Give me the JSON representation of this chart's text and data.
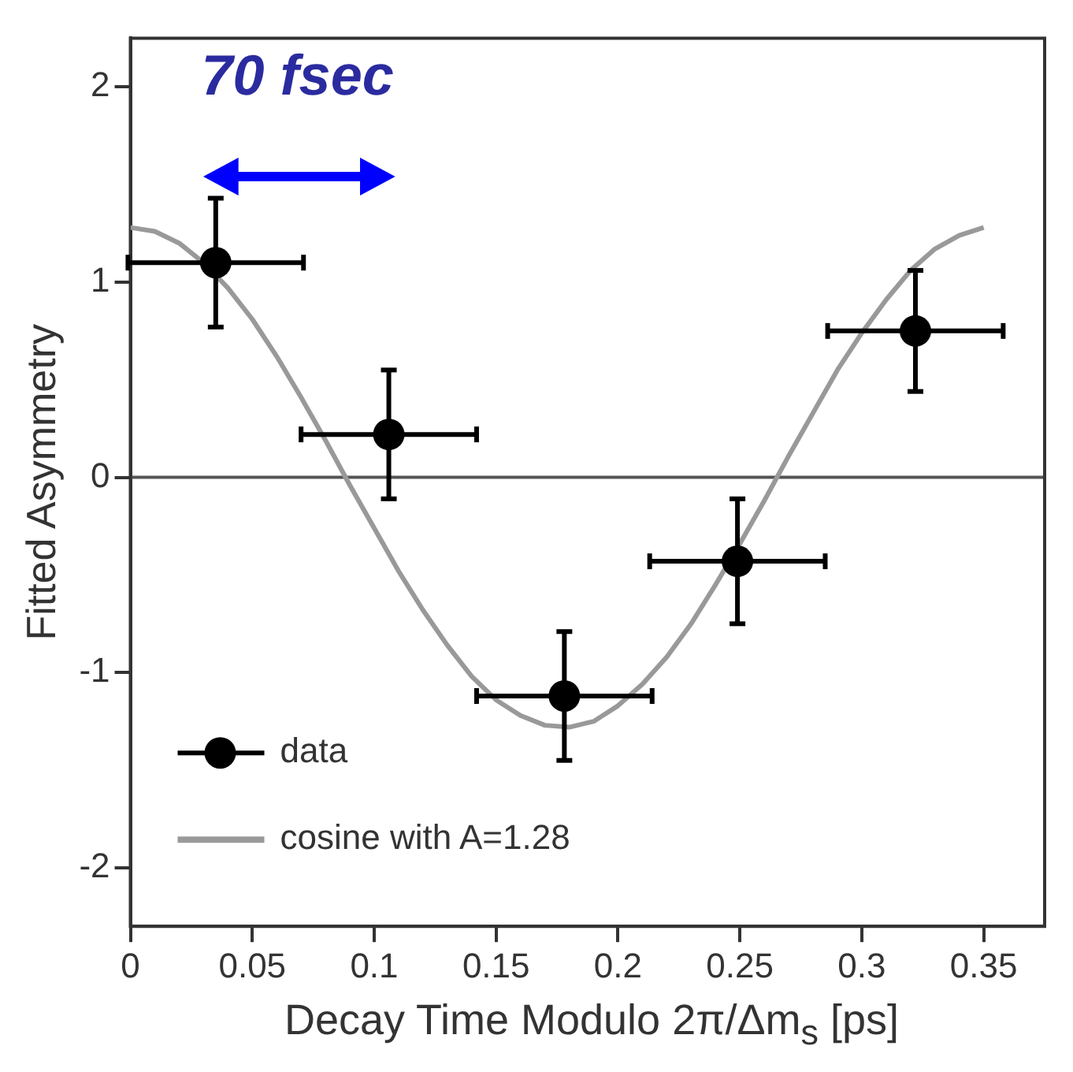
{
  "chart_data": {
    "type": "scatter",
    "xlabel": "Decay Time Modulo 2π/Δm$_{s}$ [ps]",
    "ylabel": "Fitted Asymmetry",
    "annotations": [
      "70 fsec"
    ],
    "xlim": [
      0,
      0.375
    ],
    "ylim": [
      -2.3,
      2.25
    ],
    "xticks": [
      0,
      0.05,
      {
        "value": 0.1,
        "label": "0.1"
      },
      0.15,
      {
        "value": 0.2,
        "label": "0.2"
      },
      0.25,
      {
        "value": 0.3,
        "label": "0.3"
      },
      0.35
    ],
    "yticks": [
      -2,
      -1,
      0,
      1,
      2
    ],
    "grid": false,
    "legend": "bottom left",
    "ref_lines": [
      {
        "axis": "y",
        "value": 0,
        "color": "#555555"
      }
    ],
    "series": [
      {
        "name": "data",
        "type": "scatter",
        "color": "#000000",
        "marker": "circle",
        "x": [
          0.035,
          0.106,
          0.178,
          0.249,
          0.322
        ],
        "values": [
          1.1,
          0.22,
          -1.12,
          -0.43,
          0.75
        ],
        "errors": [
          0.33,
          0.33,
          0.33,
          0.32,
          0.31
        ],
        "xerrors": [
          0.036,
          0.036,
          0.036,
          0.036,
          0.036
        ]
      },
      {
        "name": "cosine with A=1.28",
        "type": "line",
        "color": "#999999",
        "marker": "none",
        "x": [
          0,
          0.01,
          0.02,
          0.03,
          0.04,
          0.05,
          0.06,
          0.07,
          0.08,
          0.09,
          0.1,
          0.11,
          0.12,
          0.13,
          0.14,
          0.15,
          0.16,
          0.17,
          0.18,
          0.19,
          0.2,
          0.21,
          0.22,
          0.23,
          0.24,
          0.25,
          0.26,
          0.27,
          0.28,
          0.29,
          0.3,
          0.31,
          0.32,
          0.33,
          0.34,
          0.35
        ],
        "values": [
          1.28,
          1.26,
          1.2,
          1.1,
          0.97,
          0.81,
          0.62,
          0.41,
          0.19,
          -0.04,
          -0.26,
          -0.48,
          -0.68,
          -0.86,
          -1.02,
          -1.14,
          -1.22,
          -1.27,
          -1.28,
          -1.25,
          -1.17,
          -1.06,
          -0.92,
          -0.75,
          -0.55,
          -0.34,
          -0.12,
          0.11,
          0.33,
          0.55,
          0.74,
          0.91,
          1.06,
          1.17,
          1.24,
          1.28
        ]
      }
    ]
  }
}
